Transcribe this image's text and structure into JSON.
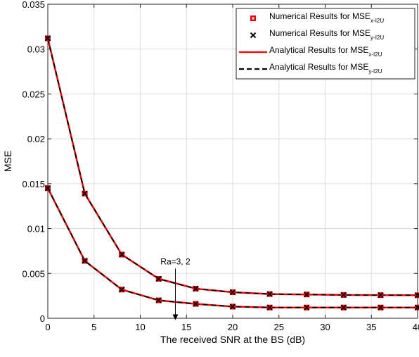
{
  "chart_data": {
    "type": "line",
    "title": "",
    "xlabel": "The received SNR at the BS (dB)",
    "ylabel": "MSE",
    "xlim": [
      0,
      40
    ],
    "ylim": [
      0,
      0.035
    ],
    "xticks": [
      0,
      5,
      10,
      15,
      20,
      25,
      30,
      35,
      40
    ],
    "xtick_labels": [
      "0",
      "5",
      "10",
      "15",
      "20",
      "25",
      "30",
      "35",
      "40"
    ],
    "yticks": [
      0,
      0.005,
      0.01,
      0.015,
      0.02,
      0.025,
      0.03,
      0.035
    ],
    "ytick_labels": [
      "0",
      "0.005",
      "0.01",
      "0.015",
      "0.02",
      "0.025",
      "0.03",
      "0.035"
    ],
    "grid": true,
    "legend_position": "top-right",
    "legend": [
      {
        "text": "Numerical Results for MSE",
        "sub": "x-I2U",
        "style": "square-marker",
        "color": "#ff0000"
      },
      {
        "text": "Numerical Results for MSE",
        "sub": "y-I2U",
        "style": "x-marker",
        "color": "#000000"
      },
      {
        "text": "Analytical Results for MSE",
        "sub": "x-I2U",
        "style": "solid-line",
        "color": "#ff0000"
      },
      {
        "text": "Analytical Results for MSE",
        "sub": "y-I2U",
        "style": "dashed-line",
        "color": "#000000"
      }
    ],
    "x": [
      0,
      4,
      8,
      12,
      16,
      20,
      24,
      28,
      32,
      36,
      40
    ],
    "curves": [
      {
        "y": [
          0.0312,
          0.0139,
          0.0071,
          0.0044,
          0.0033,
          0.0029,
          0.0027,
          0.00265,
          0.0026,
          0.00258,
          0.00257
        ]
      },
      {
        "y": [
          0.0145,
          0.0064,
          0.0032,
          0.002,
          0.0016,
          0.0013,
          0.0012,
          0.0012,
          0.0012,
          0.0012,
          0.0012
        ]
      }
    ],
    "annotation": {
      "text": "Ra=3, 2",
      "x": 13.8,
      "y": 0.0057,
      "arrow_to_y": -0.0002
    },
    "colors": {
      "red": "#ff0000",
      "black": "#000000",
      "grid": "#dddddd",
      "axis": "#262626"
    }
  }
}
